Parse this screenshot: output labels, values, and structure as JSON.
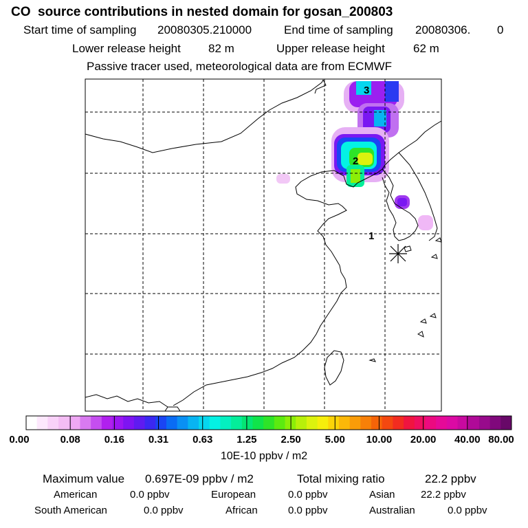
{
  "title": "CO  source contributions in nested domain for gosan_200803",
  "header": {
    "start_label": "Start time of sampling",
    "start_value": "20080305.210000",
    "end_label": "End time of sampling",
    "end_value": "20080306.",
    "end_extra": "0",
    "lower_label": "Lower release height",
    "lower_value": "82 m",
    "upper_label": "Upper release height",
    "upper_value": "62 m",
    "note": "Passive tracer used, meteorological data are from ECMWF"
  },
  "map_labels": {
    "receptor_1": "1",
    "receptor_2": "2",
    "receptor_3": "3"
  },
  "colorbar": {
    "tick_labels": [
      "0.00",
      "0.08",
      "0.16",
      "0.31",
      "0.63",
      "1.25",
      "2.50",
      "5.00",
      "10.00",
      "20.00",
      "40.00",
      "80.00"
    ],
    "units": "10E-10 ppbv / m2",
    "colors": [
      "#ffffff",
      "#fde8fd",
      "#f9d2f9",
      "#f4bdf4",
      "#efa8f4",
      "#d97af0",
      "#c54ef0",
      "#b020ee",
      "#9b16f2",
      "#7e14f2",
      "#5f1bf0",
      "#3b28f2",
      "#1a45f4",
      "#0a6cf4",
      "#0a90f4",
      "#08b4f2",
      "#06d6ee",
      "#04f2e4",
      "#04f0c0",
      "#04ee9a",
      "#04e674",
      "#10e44a",
      "#2ee428",
      "#5cea10",
      "#8cee08",
      "#b8f00a",
      "#dcf20e",
      "#f6ee0c",
      "#fcd408",
      "#fcb808",
      "#fa9c08",
      "#f88008",
      "#f66408",
      "#f44810",
      "#f22c20",
      "#f01440",
      "#ee0e60",
      "#ec0a80",
      "#e60a98",
      "#dc0aa4",
      "#c80aa0",
      "#b00a98",
      "#980a8c",
      "#80087c",
      "#680868"
    ]
  },
  "stats": {
    "max_label": "Maximum value",
    "max_value": "0.697E-09 ppbv / m2",
    "total_label": "Total mixing ratio",
    "total_value": "22.2 ppbv",
    "american_label": "American",
    "american_value": "0.0 ppbv",
    "european_label": "European",
    "european_value": "0.0 ppbv",
    "asian_label": "Asian",
    "asian_value": "22.2 ppbv",
    "south_american_label": "South American",
    "south_american_value": "0.0 ppbv",
    "african_label": "African",
    "african_value": "0.0 ppbv",
    "australian_label": "Australian",
    "australian_value": "0.0 ppbv"
  },
  "chart_data": {
    "type": "heatmap",
    "title": "CO  source contributions in nested domain for gosan_200803",
    "colorbar_ticks": [
      0.0,
      0.08,
      0.16,
      0.31,
      0.63,
      1.25,
      2.5,
      5.0,
      10.0,
      20.0,
      40.0,
      80.0
    ],
    "colorbar_units": "10E-10 ppbv / m2",
    "receptor_marker": "asterisk",
    "grid": true,
    "max_value": "0.697E-09 ppbv / m2"
  }
}
